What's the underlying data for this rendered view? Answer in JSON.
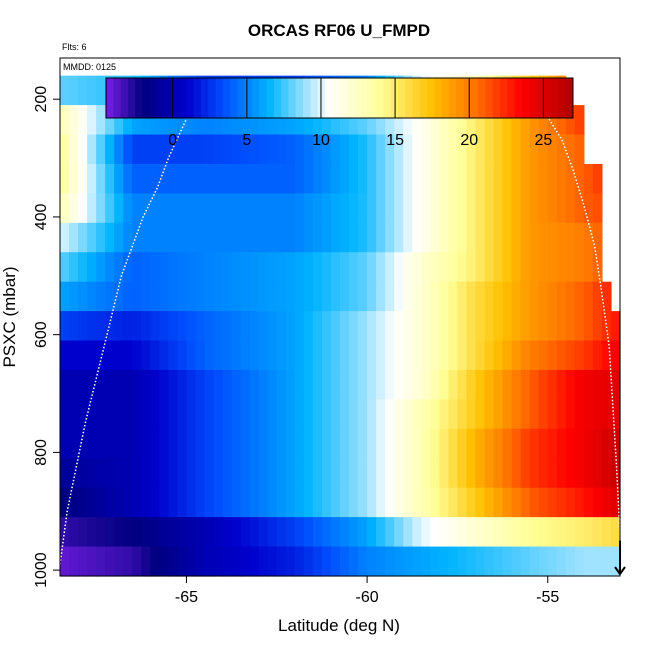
{
  "chart_data": {
    "type": "heatmap",
    "title": "ORCAS RF06 U_FMPD",
    "annotations": [
      "Flts: 6",
      "MMDD: 0125"
    ],
    "xlabel": "Latitude (deg N)",
    "ylabel": "PSXC (mbar)",
    "xlim": [
      -68.5,
      -53.0
    ],
    "ylim": [
      1010,
      130
    ],
    "y_reversed": true,
    "x_ticks": [
      -65,
      -60,
      -55
    ],
    "y_ticks": [
      200,
      400,
      600,
      800,
      1000
    ],
    "colorbar": {
      "ticks": [
        0,
        5,
        10,
        15,
        20,
        25
      ],
      "range": [
        -4.5,
        27
      ],
      "colors": [
        "#7a1fe6",
        "#00007f",
        "#0000cd",
        "#0050ff",
        "#00b4ff",
        "#ffffff",
        "#ffff99",
        "#ffc000",
        "#ff7000",
        "#ff0000",
        "#b00000"
      ],
      "color_stops": [
        -4.5,
        -2,
        1,
        3.5,
        6.5,
        10.5,
        14,
        17.5,
        20.5,
        23.5,
        27
      ]
    },
    "pressure_levels": [
      185,
      235,
      285,
      335,
      385,
      435,
      485,
      535,
      585,
      635,
      685,
      735,
      785,
      835,
      885,
      935,
      985
    ],
    "row_max_lat": [
      -54.5,
      -54.2,
      -54.0,
      -53.7,
      -53.7,
      -53.5,
      -53.5,
      -53.3,
      -53.2,
      -53.1,
      -53.0,
      -53.0,
      -53.0,
      -53.0,
      -53.0,
      -53.0,
      -53.0
    ],
    "value_profile": {
      "lat_nodes": [
        -68.5,
        -66.5,
        -64.5,
        -62.0,
        -60.0,
        -58.5,
        -57.0,
        -55.5,
        -54.0,
        -53.0
      ],
      "rows": [
        [
          8,
          7,
          3,
          3,
          5,
          10,
          13,
          17,
          21,
          23
        ],
        [
          13,
          6,
          5,
          6,
          8,
          11,
          15,
          19,
          22,
          24
        ],
        [
          14,
          3,
          3,
          4,
          7,
          11,
          15,
          19,
          21,
          23
        ],
        [
          14,
          4,
          4,
          4,
          7,
          11,
          15,
          19,
          21,
          23
        ],
        [
          13,
          5,
          5,
          5,
          7,
          11,
          15,
          19,
          21,
          22
        ],
        [
          10,
          5,
          5,
          5,
          7,
          11,
          15,
          19,
          20,
          22
        ],
        [
          8,
          4,
          5,
          6,
          8,
          12,
          15,
          19,
          20,
          22
        ],
        [
          6,
          4,
          5,
          6,
          8,
          12,
          16,
          19,
          21,
          23
        ],
        [
          3,
          2,
          4,
          6,
          9,
          12,
          16,
          19,
          21,
          23
        ],
        [
          1,
          1,
          4,
          6,
          9,
          12,
          16,
          20,
          22,
          24
        ],
        [
          0,
          0,
          3,
          6,
          9,
          12,
          17,
          21,
          24,
          25
        ],
        [
          0,
          0,
          3,
          6,
          9,
          13,
          17,
          21,
          24,
          25
        ],
        [
          0,
          0,
          3,
          6,
          9,
          13,
          18,
          22,
          24,
          26
        ],
        [
          -1,
          0,
          3,
          6,
          9,
          13,
          18,
          22,
          24,
          26
        ],
        [
          -2,
          0,
          3,
          6,
          9,
          13,
          17,
          21,
          23,
          25
        ],
        [
          -3,
          -2,
          0,
          3,
          6,
          10,
          12,
          14,
          15,
          16
        ],
        [
          -4,
          -3,
          0,
          2,
          5,
          6,
          7,
          8,
          9,
          9
        ]
      ]
    },
    "overlay": {
      "flight_track_lat": [
        -68.5,
        -68.3,
        -67.8,
        -67.2,
        -66.8,
        -66.5,
        -66.2,
        -65.8,
        -65.5,
        -65.2,
        -64.9,
        -64.5,
        -60,
        -56,
        -55.5,
        -55.0,
        -54.6,
        -54.3,
        -54.0,
        -53.7,
        -53.5,
        -53.3,
        -53.2,
        -53.1,
        -53.0
      ],
      "flight_track_p": [
        990,
        900,
        750,
        600,
        500,
        450,
        400,
        350,
        300,
        260,
        220,
        185,
        185,
        185,
        200,
        230,
        270,
        320,
        380,
        450,
        530,
        620,
        720,
        820,
        940
      ],
      "arrow_lat": -53.0,
      "arrow_p": [
        950,
        1010
      ]
    }
  }
}
